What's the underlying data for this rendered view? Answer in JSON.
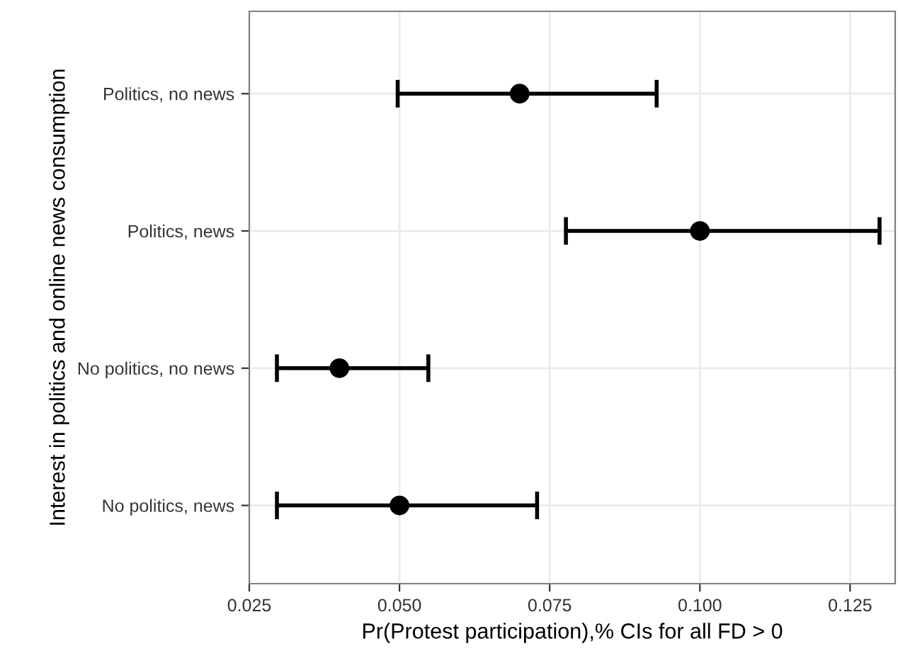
{
  "chart_data": {
    "type": "scatter",
    "orientation": "horizontal",
    "xlabel": "Pr(Protest participation),% CIs for all FD > 0",
    "ylabel": "Interest in politics and online news consumption",
    "categories": [
      "Politics, no news",
      "Politics, news",
      "No politics, no news",
      "No politics, news"
    ],
    "color": "#000000",
    "values": [
      0.07,
      0.1,
      0.04,
      0.05
    ],
    "errors": [
      [
        0.0497,
        0.0928
      ],
      [
        0.0777,
        0.1299
      ],
      [
        0.0296,
        0.0548
      ],
      [
        0.0296,
        0.0729
      ]
    ],
    "xlim": [
      0.025,
      0.1325
    ],
    "xticks": [
      {
        "value": 0.025,
        "label": "0.025"
      },
      {
        "value": 0.05,
        "label": "0.050"
      },
      {
        "value": 0.075,
        "label": "0.075"
      },
      {
        "value": 0.1,
        "label": "0.100"
      },
      {
        "value": 0.125,
        "label": "0.125"
      }
    ],
    "grid": true,
    "marker": "circle"
  }
}
